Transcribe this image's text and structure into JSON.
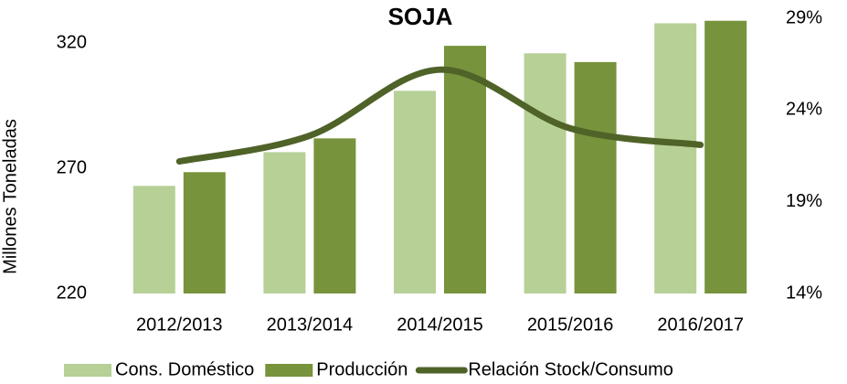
{
  "chart_data": {
    "type": "bar-line",
    "title": "SOJA",
    "y_label": "Millones Toneladas",
    "categories": [
      "2012/2013",
      "2013/2014",
      "2014/2015",
      "2015/2016",
      "2016/2017"
    ],
    "series": [
      {
        "name": "Cons. Doméstico",
        "color": "#b6d096",
        "type": "bar",
        "values": [
          263,
          276.5,
          301,
          316,
          328
        ]
      },
      {
        "name": "Producción",
        "color": "#77933c",
        "type": "bar",
        "values": [
          268.5,
          282,
          319,
          312.5,
          329
        ]
      },
      {
        "name": "Relación Stock/Consumo",
        "color": "#4f6228",
        "type": "line",
        "axis": "y2",
        "values": [
          21.2,
          22.6,
          26.2,
          23.0,
          22.1
        ]
      }
    ],
    "ylim": [
      220,
      330
    ],
    "yticks": [
      220,
      270,
      320
    ],
    "y2lim": [
      14,
      29
    ],
    "y2ticks": [
      {
        "value": 14,
        "label": "14%"
      },
      {
        "value": 19,
        "label": "19%"
      },
      {
        "value": 24,
        "label": "24%"
      },
      {
        "value": 29,
        "label": "29%"
      }
    ]
  }
}
